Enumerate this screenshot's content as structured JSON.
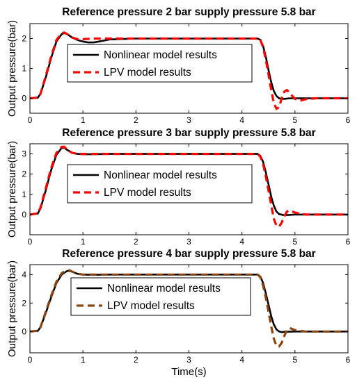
{
  "chart_data": [
    {
      "type": "line",
      "title": "Reference pressure 2 bar supply pressure 5.8 bar",
      "xlabel": "",
      "ylabel": "Output pressure(bar)",
      "xlim": [
        0,
        6
      ],
      "ylim": [
        -0.5,
        2.5
      ],
      "xticks": [
        "0",
        "1",
        "2",
        "3",
        "4",
        "5",
        "6"
      ],
      "yticks": [
        "0",
        "1",
        "2"
      ],
      "grid": false,
      "legend_position": "top-center",
      "series": [
        {
          "name": "Nonlinear model results",
          "color": "#000000",
          "style": "solid",
          "x": [
            0,
            0.15,
            0.2,
            0.3,
            0.4,
            0.5,
            0.6,
            0.65,
            0.7,
            0.8,
            0.9,
            1.0,
            1.1,
            1.2,
            1.3,
            1.5,
            2.0,
            3.0,
            4.0,
            4.3,
            4.35,
            4.4,
            4.45,
            4.5,
            4.55,
            4.6,
            4.65,
            4.7,
            4.8,
            4.9,
            5.0,
            6.0
          ],
          "y": [
            0,
            0.02,
            0.15,
            0.7,
            1.35,
            1.9,
            2.15,
            2.18,
            2.15,
            2.03,
            1.95,
            1.9,
            1.87,
            1.87,
            1.9,
            1.97,
            2.0,
            2.0,
            2.0,
            2.0,
            1.95,
            1.75,
            1.4,
            0.95,
            0.55,
            0.25,
            0.08,
            0.0,
            -0.02,
            0.0,
            0.0,
            0.0
          ]
        },
        {
          "name": "LPV model results",
          "color": "#ff0000",
          "style": "dashed",
          "x": [
            0,
            0.15,
            0.2,
            0.3,
            0.4,
            0.5,
            0.6,
            0.65,
            0.7,
            0.8,
            0.9,
            1.0,
            1.2,
            1.5,
            2.0,
            3.0,
            4.0,
            4.3,
            4.35,
            4.4,
            4.45,
            4.5,
            4.55,
            4.6,
            4.65,
            4.7,
            4.75,
            4.8,
            4.85,
            4.9,
            5.0,
            5.1,
            5.2,
            5.4,
            6.0
          ],
          "y": [
            0,
            0.02,
            0.15,
            0.75,
            1.4,
            1.95,
            2.18,
            2.2,
            2.15,
            2.03,
            1.98,
            1.98,
            2.0,
            2.0,
            2.0,
            2.0,
            2.0,
            2.0,
            1.95,
            1.7,
            1.3,
            0.8,
            0.3,
            -0.15,
            -0.35,
            -0.3,
            0.0,
            0.22,
            0.28,
            0.18,
            -0.02,
            -0.08,
            -0.03,
            0.0,
            0.0
          ]
        }
      ]
    },
    {
      "type": "line",
      "title": "Reference pressure 3 bar supply pressure 5.8 bar",
      "xlabel": "",
      "ylabel": "Output pressure(bar)",
      "xlim": [
        0,
        6
      ],
      "ylim": [
        -1,
        3.5
      ],
      "xticks": [
        "0",
        "1",
        "2",
        "3",
        "4",
        "5",
        "6"
      ],
      "yticks": [
        "0",
        "1",
        "2",
        "3"
      ],
      "grid": false,
      "legend_position": "top-center",
      "series": [
        {
          "name": "Nonlinear model results",
          "color": "#000000",
          "style": "solid",
          "x": [
            0,
            0.15,
            0.2,
            0.3,
            0.4,
            0.5,
            0.6,
            0.65,
            0.7,
            0.8,
            0.9,
            1.0,
            1.2,
            1.5,
            2.0,
            3.0,
            4.0,
            4.3,
            4.35,
            4.4,
            4.45,
            4.5,
            4.55,
            4.6,
            4.65,
            4.7,
            4.8,
            5.0,
            6.0
          ],
          "y": [
            0,
            0.05,
            0.3,
            1.2,
            2.2,
            2.95,
            3.3,
            3.3,
            3.2,
            3.05,
            3.0,
            2.98,
            2.98,
            3.0,
            3.0,
            3.0,
            3.0,
            3.0,
            2.9,
            2.6,
            2.1,
            1.5,
            0.9,
            0.45,
            0.15,
            0.02,
            -0.03,
            0.0,
            0.0
          ]
        },
        {
          "name": "LPV model results",
          "color": "#ff0000",
          "style": "dashed",
          "x": [
            0,
            0.15,
            0.2,
            0.3,
            0.4,
            0.5,
            0.6,
            0.65,
            0.7,
            0.8,
            0.9,
            1.0,
            1.2,
            1.5,
            2.0,
            3.0,
            4.0,
            4.3,
            4.35,
            4.4,
            4.45,
            4.5,
            4.55,
            4.6,
            4.65,
            4.7,
            4.75,
            4.8,
            4.85,
            4.9,
            5.0,
            5.2,
            6.0
          ],
          "y": [
            0,
            0.05,
            0.35,
            1.3,
            2.3,
            3.05,
            3.35,
            3.35,
            3.2,
            3.05,
            3.0,
            3.0,
            3.0,
            3.0,
            3.0,
            3.0,
            3.0,
            3.0,
            2.85,
            2.5,
            1.9,
            1.2,
            0.5,
            -0.2,
            -0.55,
            -0.6,
            -0.4,
            -0.1,
            0.15,
            0.2,
            0.1,
            0.0,
            0.0
          ]
        }
      ]
    },
    {
      "type": "line",
      "title": "Reference pressure 4 bar supply pressure 5.8 bar",
      "xlabel": "Time(s)",
      "ylabel": "Output pressure(bar)",
      "xlim": [
        0,
        6
      ],
      "ylim": [
        -1.5,
        4.7
      ],
      "xticks": [
        "0",
        "1",
        "2",
        "3",
        "4",
        "5",
        "6"
      ],
      "yticks": [
        "0",
        "2",
        "4"
      ],
      "grid": false,
      "legend_position": "top-center",
      "series": [
        {
          "name": "Nonlinear model results",
          "color": "#000000",
          "style": "solid",
          "x": [
            0,
            0.15,
            0.2,
            0.3,
            0.4,
            0.5,
            0.6,
            0.7,
            0.75,
            0.8,
            0.9,
            1.0,
            1.2,
            1.5,
            2.0,
            3.0,
            4.0,
            4.3,
            4.35,
            4.4,
            4.45,
            4.5,
            4.55,
            4.6,
            4.65,
            4.7,
            4.75,
            4.8,
            5.0,
            6.0
          ],
          "y": [
            0,
            0.05,
            0.3,
            1.3,
            2.4,
            3.4,
            4.0,
            4.25,
            4.25,
            4.2,
            4.05,
            4.0,
            3.98,
            4.0,
            4.0,
            4.0,
            4.0,
            4.0,
            3.85,
            3.4,
            2.7,
            1.9,
            1.1,
            0.5,
            0.15,
            0.0,
            -0.05,
            -0.02,
            0.0,
            0.0
          ]
        },
        {
          "name": "LPV model results",
          "color": "#8b4513",
          "style": "dashed",
          "x": [
            0,
            0.15,
            0.2,
            0.3,
            0.4,
            0.5,
            0.6,
            0.7,
            0.75,
            0.8,
            0.9,
            1.0,
            1.2,
            1.5,
            2.0,
            3.0,
            4.0,
            4.3,
            4.35,
            4.4,
            4.45,
            4.5,
            4.55,
            4.6,
            4.65,
            4.7,
            4.75,
            4.8,
            4.85,
            4.9,
            5.0,
            5.2,
            6.0
          ],
          "y": [
            0,
            0.05,
            0.3,
            1.4,
            2.5,
            3.5,
            4.1,
            4.3,
            4.3,
            4.2,
            4.05,
            4.0,
            4.0,
            4.0,
            4.0,
            4.0,
            4.0,
            4.0,
            3.8,
            3.2,
            2.4,
            1.4,
            0.4,
            -0.5,
            -1.0,
            -1.05,
            -0.8,
            -0.3,
            0.1,
            0.25,
            0.1,
            0.0,
            0.0
          ]
        }
      ]
    }
  ]
}
